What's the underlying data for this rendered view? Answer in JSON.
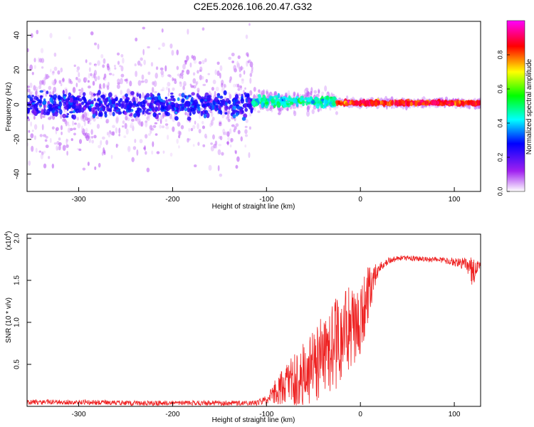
{
  "title": "C2E5.2026.106.20.47.G32",
  "chart_data": [
    {
      "type": "heatmap",
      "title": "C2E5.2026.106.20.47.G32",
      "xlabel": "Height of straight line (km)",
      "ylabel": "Frequency (Hz)",
      "xlim": [
        -355,
        128
      ],
      "ylim": [
        -50,
        48
      ],
      "xticks": [
        -300,
        -200,
        -100,
        0,
        100
      ],
      "xtick_labels": [
        "-300",
        "-200",
        "-100",
        "0",
        "100"
      ],
      "yticks": [
        -40,
        -20,
        0,
        20,
        40
      ],
      "ytick_labels": [
        "-40",
        "-20",
        "0",
        "20",
        "40"
      ],
      "colorbar": {
        "label": "Normalized spectral amplitude",
        "range": [
          0,
          1
        ],
        "ticks": [
          0,
          0.2,
          0.4,
          0.6,
          0.8
        ],
        "tick_labels": [
          "0.0",
          "0.2",
          "0.4",
          "0.6",
          "0.8"
        ],
        "colors": [
          "#ffffff",
          "#a020f0",
          "#0000ff",
          "#00ffff",
          "#00ff00",
          "#ffff00",
          "#ff0000",
          "#ff00ff"
        ]
      },
      "bands": [
        {
          "x_start": -355,
          "x_end": -115,
          "center_hz": 0,
          "core_spread_hz": 10,
          "halo_spread_hz": 48,
          "level": 0.25
        },
        {
          "x_start": -115,
          "x_end": -25,
          "center_hz": 2,
          "core_spread_hz": 4,
          "halo_spread_hz": 8,
          "level": 0.45
        },
        {
          "x_start": -25,
          "x_end": 128,
          "center_hz": 1,
          "core_spread_hz": 1.5,
          "halo_spread_hz": 3,
          "level": 0.85
        }
      ]
    },
    {
      "type": "line",
      "xlabel": "Height of straight line (km)",
      "ylabel": "SNR (10 * v/v)",
      "scale_label": "(x10",
      "scale_exponent": "4",
      "scale_close": ")",
      "xlim": [
        -355,
        128
      ],
      "ylim": [
        0,
        2.05
      ],
      "xticks": [
        -300,
        -200,
        -100,
        0,
        100
      ],
      "xtick_labels": [
        "-300",
        "-200",
        "-100",
        "0",
        "100"
      ],
      "yticks": [
        0.5,
        1.0,
        1.5,
        2.0
      ],
      "ytick_labels": [
        "0.5",
        "1.0",
        "1.5",
        "2.0"
      ],
      "color": "#ee2222",
      "series": [
        {
          "name": "SNR",
          "x": [
            -355,
            -300,
            -250,
            -200,
            -150,
            -110,
            -100,
            -90,
            -80,
            -70,
            -60,
            -50,
            -40,
            -30,
            -20,
            -10,
            0,
            5,
            10,
            15,
            20,
            25,
            30,
            40,
            50,
            60,
            70,
            80,
            90,
            100,
            110,
            115,
            120,
            125,
            128
          ],
          "y": [
            0.05,
            0.05,
            0.04,
            0.04,
            0.04,
            0.04,
            0.08,
            0.18,
            0.25,
            0.32,
            0.4,
            0.5,
            0.58,
            0.7,
            0.82,
            0.95,
            1.05,
            1.2,
            1.4,
            1.55,
            1.65,
            1.7,
            1.73,
            1.76,
            1.77,
            1.76,
            1.75,
            1.75,
            1.74,
            1.72,
            1.7,
            1.65,
            1.6,
            1.68,
            1.68
          ],
          "noise_amplitude": [
            0.03,
            0.03,
            0.03,
            0.03,
            0.03,
            0.03,
            0.06,
            0.15,
            0.25,
            0.35,
            0.4,
            0.45,
            0.5,
            0.55,
            0.55,
            0.5,
            0.45,
            0.4,
            0.3,
            0.15,
            0.06,
            0.05,
            0.04,
            0.03,
            0.03,
            0.03,
            0.03,
            0.03,
            0.04,
            0.05,
            0.07,
            0.12,
            0.2,
            0.06,
            0.05
          ]
        }
      ]
    }
  ]
}
